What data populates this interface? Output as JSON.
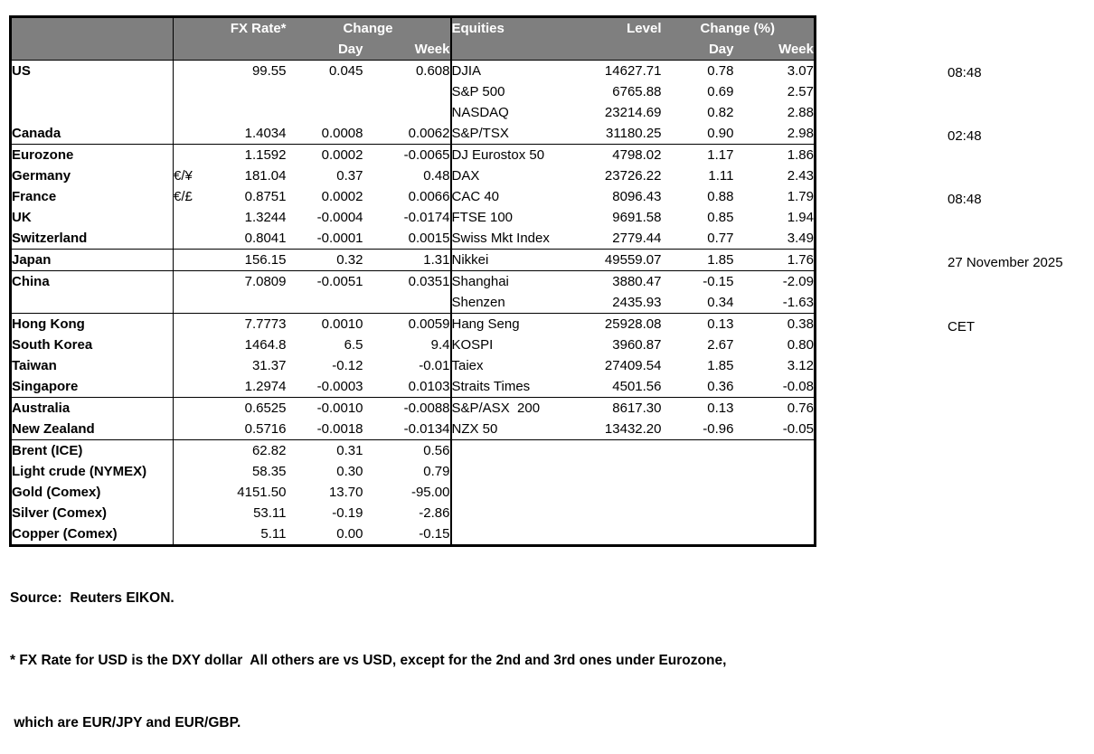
{
  "fx_header": {
    "rate": "FX Rate*",
    "change": "Change",
    "day": "Day",
    "week": "Week"
  },
  "eq_header": {
    "name": "Equities",
    "level": "Level",
    "change": "Change (%)",
    "day": "Day",
    "week": "Week"
  },
  "rows": [
    {
      "country": "US",
      "sym": "",
      "rate": "99.55",
      "fx_day": "0.045",
      "fx_week": "0.608",
      "index": "DJIA",
      "level": "14627.71",
      "eq_day": "0.78",
      "eq_week": "3.07",
      "indent": false,
      "group_end": false
    },
    {
      "country": "",
      "sym": "",
      "rate": "",
      "fx_day": "",
      "fx_week": "",
      "index": "S&P 500",
      "level": "6765.88",
      "eq_day": "0.69",
      "eq_week": "2.57",
      "indent": false,
      "group_end": false
    },
    {
      "country": "",
      "sym": "",
      "rate": "",
      "fx_day": "",
      "fx_week": "",
      "index": "NASDAQ",
      "level": "23214.69",
      "eq_day": "0.82",
      "eq_week": "2.88",
      "indent": false,
      "group_end": false
    },
    {
      "country": "Canada",
      "sym": "",
      "rate": "1.4034",
      "fx_day": "0.0008",
      "fx_week": "0.0062",
      "index": "S&P/TSX",
      "level": "31180.25",
      "eq_day": "0.90",
      "eq_week": "2.98",
      "indent": false,
      "group_end": true
    },
    {
      "country": "Eurozone",
      "sym": "",
      "rate": "1.1592",
      "fx_day": "0.0002",
      "fx_week": "-0.0065",
      "index": "DJ Eurostox 50",
      "level": "4798.02",
      "eq_day": "1.17",
      "eq_week": "1.86",
      "indent": false,
      "group_end": false
    },
    {
      "country": "Germany",
      "sym": "€/¥",
      "rate": "181.04",
      "fx_day": "0.37",
      "fx_week": "0.48",
      "index": "DAX",
      "level": "23726.22",
      "eq_day": "1.11",
      "eq_week": "2.43",
      "indent": true,
      "group_end": false
    },
    {
      "country": "France",
      "sym": "€/£",
      "rate": "0.8751",
      "fx_day": "0.0002",
      "fx_week": "0.0066",
      "index": "CAC 40",
      "level": "8096.43",
      "eq_day": "0.88",
      "eq_week": "1.79",
      "indent": true,
      "group_end": false
    },
    {
      "country": "UK",
      "sym": "",
      "rate": "1.3244",
      "fx_day": "-0.0004",
      "fx_week": "-0.0174",
      "index": "FTSE 100",
      "level": "9691.58",
      "eq_day": "0.85",
      "eq_week": "1.94",
      "indent": false,
      "group_end": false
    },
    {
      "country": "Switzerland",
      "sym": "",
      "rate": "0.8041",
      "fx_day": "-0.0001",
      "fx_week": "0.0015",
      "index": "Swiss Mkt Index",
      "level": "2779.44",
      "eq_day": "0.77",
      "eq_week": "3.49",
      "indent": false,
      "group_end": true
    },
    {
      "country": "Japan",
      "sym": "",
      "rate": "156.15",
      "fx_day": "0.32",
      "fx_week": "1.31",
      "index": "Nikkei",
      "level": "49559.07",
      "eq_day": "1.85",
      "eq_week": "1.76",
      "indent": false,
      "group_end": true
    },
    {
      "country": "China",
      "sym": "",
      "rate": "7.0809",
      "fx_day": "-0.0051",
      "fx_week": "0.0351",
      "index": "Shanghai",
      "level": "3880.47",
      "eq_day": "-0.15",
      "eq_week": "-2.09",
      "indent": false,
      "group_end": false
    },
    {
      "country": "",
      "sym": "",
      "rate": "",
      "fx_day": "",
      "fx_week": "",
      "index": "Shenzen",
      "level": "2435.93",
      "eq_day": "0.34",
      "eq_week": "-1.63",
      "indent": false,
      "group_end": true
    },
    {
      "country": "Hong Kong",
      "sym": "",
      "rate": "7.7773",
      "fx_day": "0.0010",
      "fx_week": "0.0059",
      "index": "Hang Seng",
      "level": "25928.08",
      "eq_day": "0.13",
      "eq_week": "0.38",
      "indent": false,
      "group_end": false
    },
    {
      "country": "South Korea",
      "sym": "",
      "rate": "1464.8",
      "fx_day": "6.5",
      "fx_week": "9.4",
      "index": "KOSPI",
      "level": "3960.87",
      "eq_day": "2.67",
      "eq_week": "0.80",
      "indent": false,
      "group_end": false
    },
    {
      "country": "Taiwan",
      "sym": "",
      "rate": "31.37",
      "fx_day": "-0.12",
      "fx_week": "-0.01",
      "index": "Taiex",
      "level": "27409.54",
      "eq_day": "1.85",
      "eq_week": "3.12",
      "indent": false,
      "group_end": false
    },
    {
      "country": "Singapore",
      "sym": "",
      "rate": "1.2974",
      "fx_day": "-0.0003",
      "fx_week": "0.0103",
      "index": "Straits Times",
      "level": "4501.56",
      "eq_day": "0.36",
      "eq_week": "-0.08",
      "indent": false,
      "group_end": true
    },
    {
      "country": "Australia",
      "sym": "",
      "rate": "0.6525",
      "fx_day": "-0.0010",
      "fx_week": "-0.0088",
      "index": "S&P/ASX  200",
      "level": "8617.30",
      "eq_day": "0.13",
      "eq_week": "0.76",
      "indent": false,
      "group_end": false
    },
    {
      "country": "New Zealand",
      "sym": "",
      "rate": "0.5716",
      "fx_day": "-0.0018",
      "fx_week": "-0.0134",
      "index": "NZX 50",
      "level": "13432.20",
      "eq_day": "-0.96",
      "eq_week": "-0.05",
      "indent": false,
      "group_end": true
    },
    {
      "country": "Brent (ICE)",
      "sym": "",
      "rate": "62.82",
      "fx_day": "0.31",
      "fx_week": "0.56",
      "index": "",
      "level": "",
      "eq_day": "",
      "eq_week": "",
      "indent": false,
      "group_end": false
    },
    {
      "country": "Light crude (NYMEX)",
      "sym": "",
      "rate": "58.35",
      "fx_day": "0.30",
      "fx_week": "0.79",
      "index": "",
      "level": "",
      "eq_day": "",
      "eq_week": "",
      "indent": false,
      "group_end": false
    },
    {
      "country": "Gold (Comex)",
      "sym": "",
      "rate": "4151.50",
      "fx_day": "13.70",
      "fx_week": "-95.00",
      "index": "",
      "level": "",
      "eq_day": "",
      "eq_week": "",
      "indent": false,
      "group_end": false
    },
    {
      "country": "Silver (Comex)",
      "sym": "",
      "rate": "53.11",
      "fx_day": "-0.19",
      "fx_week": "-2.86",
      "index": "",
      "level": "",
      "eq_day": "",
      "eq_week": "",
      "indent": false,
      "group_end": false
    },
    {
      "country": "Copper (Comex)",
      "sym": "",
      "rate": "5.11",
      "fx_day": "0.00",
      "fx_week": "-0.15",
      "index": "",
      "level": "",
      "eq_day": "",
      "eq_week": "",
      "indent": false,
      "group_end": false
    }
  ],
  "sidebar": {
    "lines": [
      "08:48",
      "02:48",
      "08:48",
      "27 November 2025",
      "CET"
    ]
  },
  "footer": {
    "lines": [
      "Source:  Reuters EIKON.",
      "* FX Rate for USD is the DXY dollar  All others are vs USD, except for the 2nd and 3rd ones under Eurozone,",
      " which are EUR/JPY and EUR/GBP."
    ]
  },
  "colors": {
    "header_bg": "#7f7f7f",
    "header_text": "#ffffff",
    "border": "#000000",
    "body_text": "#000000"
  }
}
